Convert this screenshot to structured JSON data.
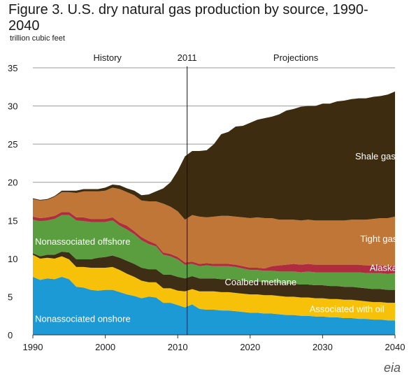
{
  "title": "Figure 3. U.S. dry natural gas production by source, 1990-2040",
  "units": "trillion cubic feet",
  "logo": "eia",
  "chart_data": {
    "type": "area",
    "stacked": true,
    "title": "Figure 3. U.S. dry natural gas production by source, 1990-2040",
    "ylabel": "trillion cubic feet",
    "xlim": [
      1990,
      2040
    ],
    "ylim": [
      0,
      35
    ],
    "x_ticks": [
      1990,
      2000,
      2010,
      2020,
      2030,
      2040
    ],
    "y_ticks": [
      0,
      5,
      10,
      15,
      20,
      25,
      30,
      35
    ],
    "grid": "horizontal",
    "annotations": [
      "History",
      "2011",
      "Projections"
    ],
    "divider_year": 2011.3,
    "x": [
      1990,
      1991,
      1992,
      1993,
      1994,
      1995,
      1996,
      1997,
      1998,
      1999,
      2000,
      2001,
      2002,
      2003,
      2004,
      2005,
      2006,
      2007,
      2008,
      2009,
      2010,
      2011,
      2012,
      2013,
      2014,
      2015,
      2016,
      2017,
      2018,
      2019,
      2020,
      2021,
      2022,
      2023,
      2024,
      2025,
      2026,
      2027,
      2028,
      2029,
      2030,
      2031,
      2032,
      2033,
      2034,
      2035,
      2036,
      2037,
      2038,
      2039,
      2040
    ],
    "series": [
      {
        "name": "Nonassociated onshore",
        "color": "#1b9ad6",
        "values": [
          7.6,
          7.2,
          7.4,
          7.3,
          7.6,
          7.3,
          6.3,
          6.2,
          5.9,
          5.8,
          5.9,
          5.9,
          5.6,
          5.3,
          5.1,
          4.8,
          5.0,
          4.9,
          4.2,
          4.2,
          3.9,
          3.6,
          4.0,
          3.4,
          3.3,
          3.3,
          3.2,
          3.2,
          3.1,
          3.0,
          2.9,
          2.9,
          2.8,
          2.8,
          2.7,
          2.6,
          2.6,
          2.5,
          2.5,
          2.4,
          2.4,
          2.3,
          2.3,
          2.2,
          2.2,
          2.1,
          2.1,
          2.0,
          2.0,
          1.9,
          1.9
        ]
      },
      {
        "name": "Associated with oil",
        "color": "#f7c10a",
        "values": [
          2.9,
          2.8,
          2.7,
          2.7,
          2.7,
          2.6,
          2.6,
          2.7,
          2.9,
          3.0,
          2.9,
          3.0,
          2.9,
          2.7,
          2.5,
          2.3,
          1.9,
          2.0,
          1.9,
          1.9,
          1.9,
          2.1,
          2.0,
          2.3,
          2.4,
          2.4,
          2.4,
          2.4,
          2.4,
          2.4,
          2.4,
          2.4,
          2.4,
          2.4,
          2.4,
          2.4,
          2.4,
          2.4,
          2.4,
          2.4,
          2.4,
          2.4,
          2.4,
          2.4,
          2.4,
          2.4,
          2.3,
          2.3,
          2.3,
          2.3,
          2.3
        ]
      },
      {
        "name": "Coalbed methane",
        "color": "#3e2e16",
        "values": [
          0.2,
          0.3,
          0.4,
          0.5,
          0.6,
          0.9,
          1.0,
          1.0,
          1.1,
          1.3,
          1.4,
          1.5,
          1.6,
          1.7,
          1.7,
          1.7,
          1.7,
          1.7,
          1.8,
          1.8,
          1.8,
          1.7,
          1.7,
          1.7,
          1.7,
          1.7,
          1.7,
          1.7,
          1.7,
          1.7,
          1.7,
          1.7,
          1.7,
          1.7,
          1.7,
          1.7,
          1.7,
          1.7,
          1.7,
          1.7,
          1.7,
          1.7,
          1.7,
          1.7,
          1.7,
          1.7,
          1.7,
          1.7,
          1.7,
          1.7,
          1.7
        ]
      },
      {
        "name": "Nonassociated offshore",
        "color": "#5a9e3f",
        "values": [
          4.4,
          4.6,
          4.5,
          4.7,
          4.8,
          4.9,
          5.1,
          5.0,
          4.9,
          4.7,
          4.6,
          4.6,
          4.2,
          4.1,
          3.9,
          3.6,
          3.3,
          3.0,
          2.6,
          2.4,
          2.3,
          1.8,
          1.6,
          1.6,
          1.7,
          1.6,
          1.7,
          1.7,
          1.7,
          1.6,
          1.5,
          1.5,
          1.5,
          1.5,
          1.5,
          1.6,
          1.6,
          1.6,
          1.7,
          1.7,
          1.7,
          1.8,
          1.8,
          1.9,
          1.9,
          2.0,
          2.0,
          2.1,
          2.1,
          2.1,
          2.2
        ]
      },
      {
        "name": "Alaska",
        "color": "#b02d3f",
        "values": [
          0.4,
          0.4,
          0.4,
          0.4,
          0.4,
          0.4,
          0.4,
          0.5,
          0.4,
          0.4,
          0.4,
          0.4,
          0.4,
          0.5,
          0.4,
          0.4,
          0.4,
          0.3,
          0.3,
          0.3,
          0.3,
          0.3,
          0.3,
          0.3,
          0.3,
          0.3,
          0.3,
          0.3,
          0.3,
          0.3,
          0.3,
          0.3,
          0.3,
          0.6,
          0.8,
          0.9,
          1.0,
          1.0,
          1.0,
          1.0,
          1.0,
          1.0,
          1.0,
          1.0,
          1.0,
          1.0,
          1.0,
          1.0,
          1.0,
          1.0,
          1.0
        ]
      },
      {
        "name": "Tight gas",
        "color": "#c07636",
        "values": [
          2.3,
          2.3,
          2.3,
          2.5,
          2.6,
          2.6,
          3.2,
          3.4,
          3.6,
          3.6,
          3.7,
          3.9,
          4.4,
          4.4,
          4.7,
          4.8,
          5.2,
          5.6,
          6.4,
          6.2,
          6.0,
          5.6,
          6.1,
          6.2,
          6.0,
          6.2,
          6.3,
          6.3,
          6.3,
          6.4,
          6.5,
          6.6,
          6.6,
          6.3,
          6.0,
          5.9,
          5.8,
          5.8,
          5.8,
          5.8,
          5.8,
          5.8,
          5.8,
          5.8,
          5.9,
          5.9,
          6.0,
          6.1,
          6.2,
          6.3,
          6.4
        ]
      },
      {
        "name": "Shale gas",
        "color": "#3d2c10",
        "values": [
          0.1,
          0.1,
          0.1,
          0.1,
          0.2,
          0.2,
          0.3,
          0.3,
          0.3,
          0.3,
          0.4,
          0.4,
          0.5,
          0.5,
          0.6,
          0.7,
          0.9,
          1.3,
          2.0,
          3.2,
          5.3,
          8.3,
          8.4,
          8.6,
          8.8,
          9.5,
          10.7,
          11.0,
          11.8,
          12.0,
          12.5,
          12.8,
          13.1,
          13.3,
          13.8,
          14.3,
          14.5,
          14.9,
          14.9,
          15.0,
          15.3,
          15.3,
          15.6,
          15.7,
          15.8,
          15.9,
          15.9,
          16.0,
          16.0,
          16.2,
          16.4
        ]
      }
    ],
    "labels": [
      {
        "text": "Nonassociated onshore",
        "x": 1990.3,
        "y": 1.7
      },
      {
        "text": "Associated with oil",
        "x": 2028.2,
        "y": 3.0
      },
      {
        "text": "Coalbed methane",
        "x": 2016.5,
        "y": 6.5
      },
      {
        "text": "Nonassociated offshore",
        "x": 1990.3,
        "y": 11.8
      },
      {
        "text": "Alaska",
        "x": 2036.5,
        "y": 8.4
      },
      {
        "text": "Tight gas",
        "x": 2035.2,
        "y": 12.2
      },
      {
        "text": "Shale gas",
        "x": 2034.5,
        "y": 23.0
      }
    ]
  }
}
